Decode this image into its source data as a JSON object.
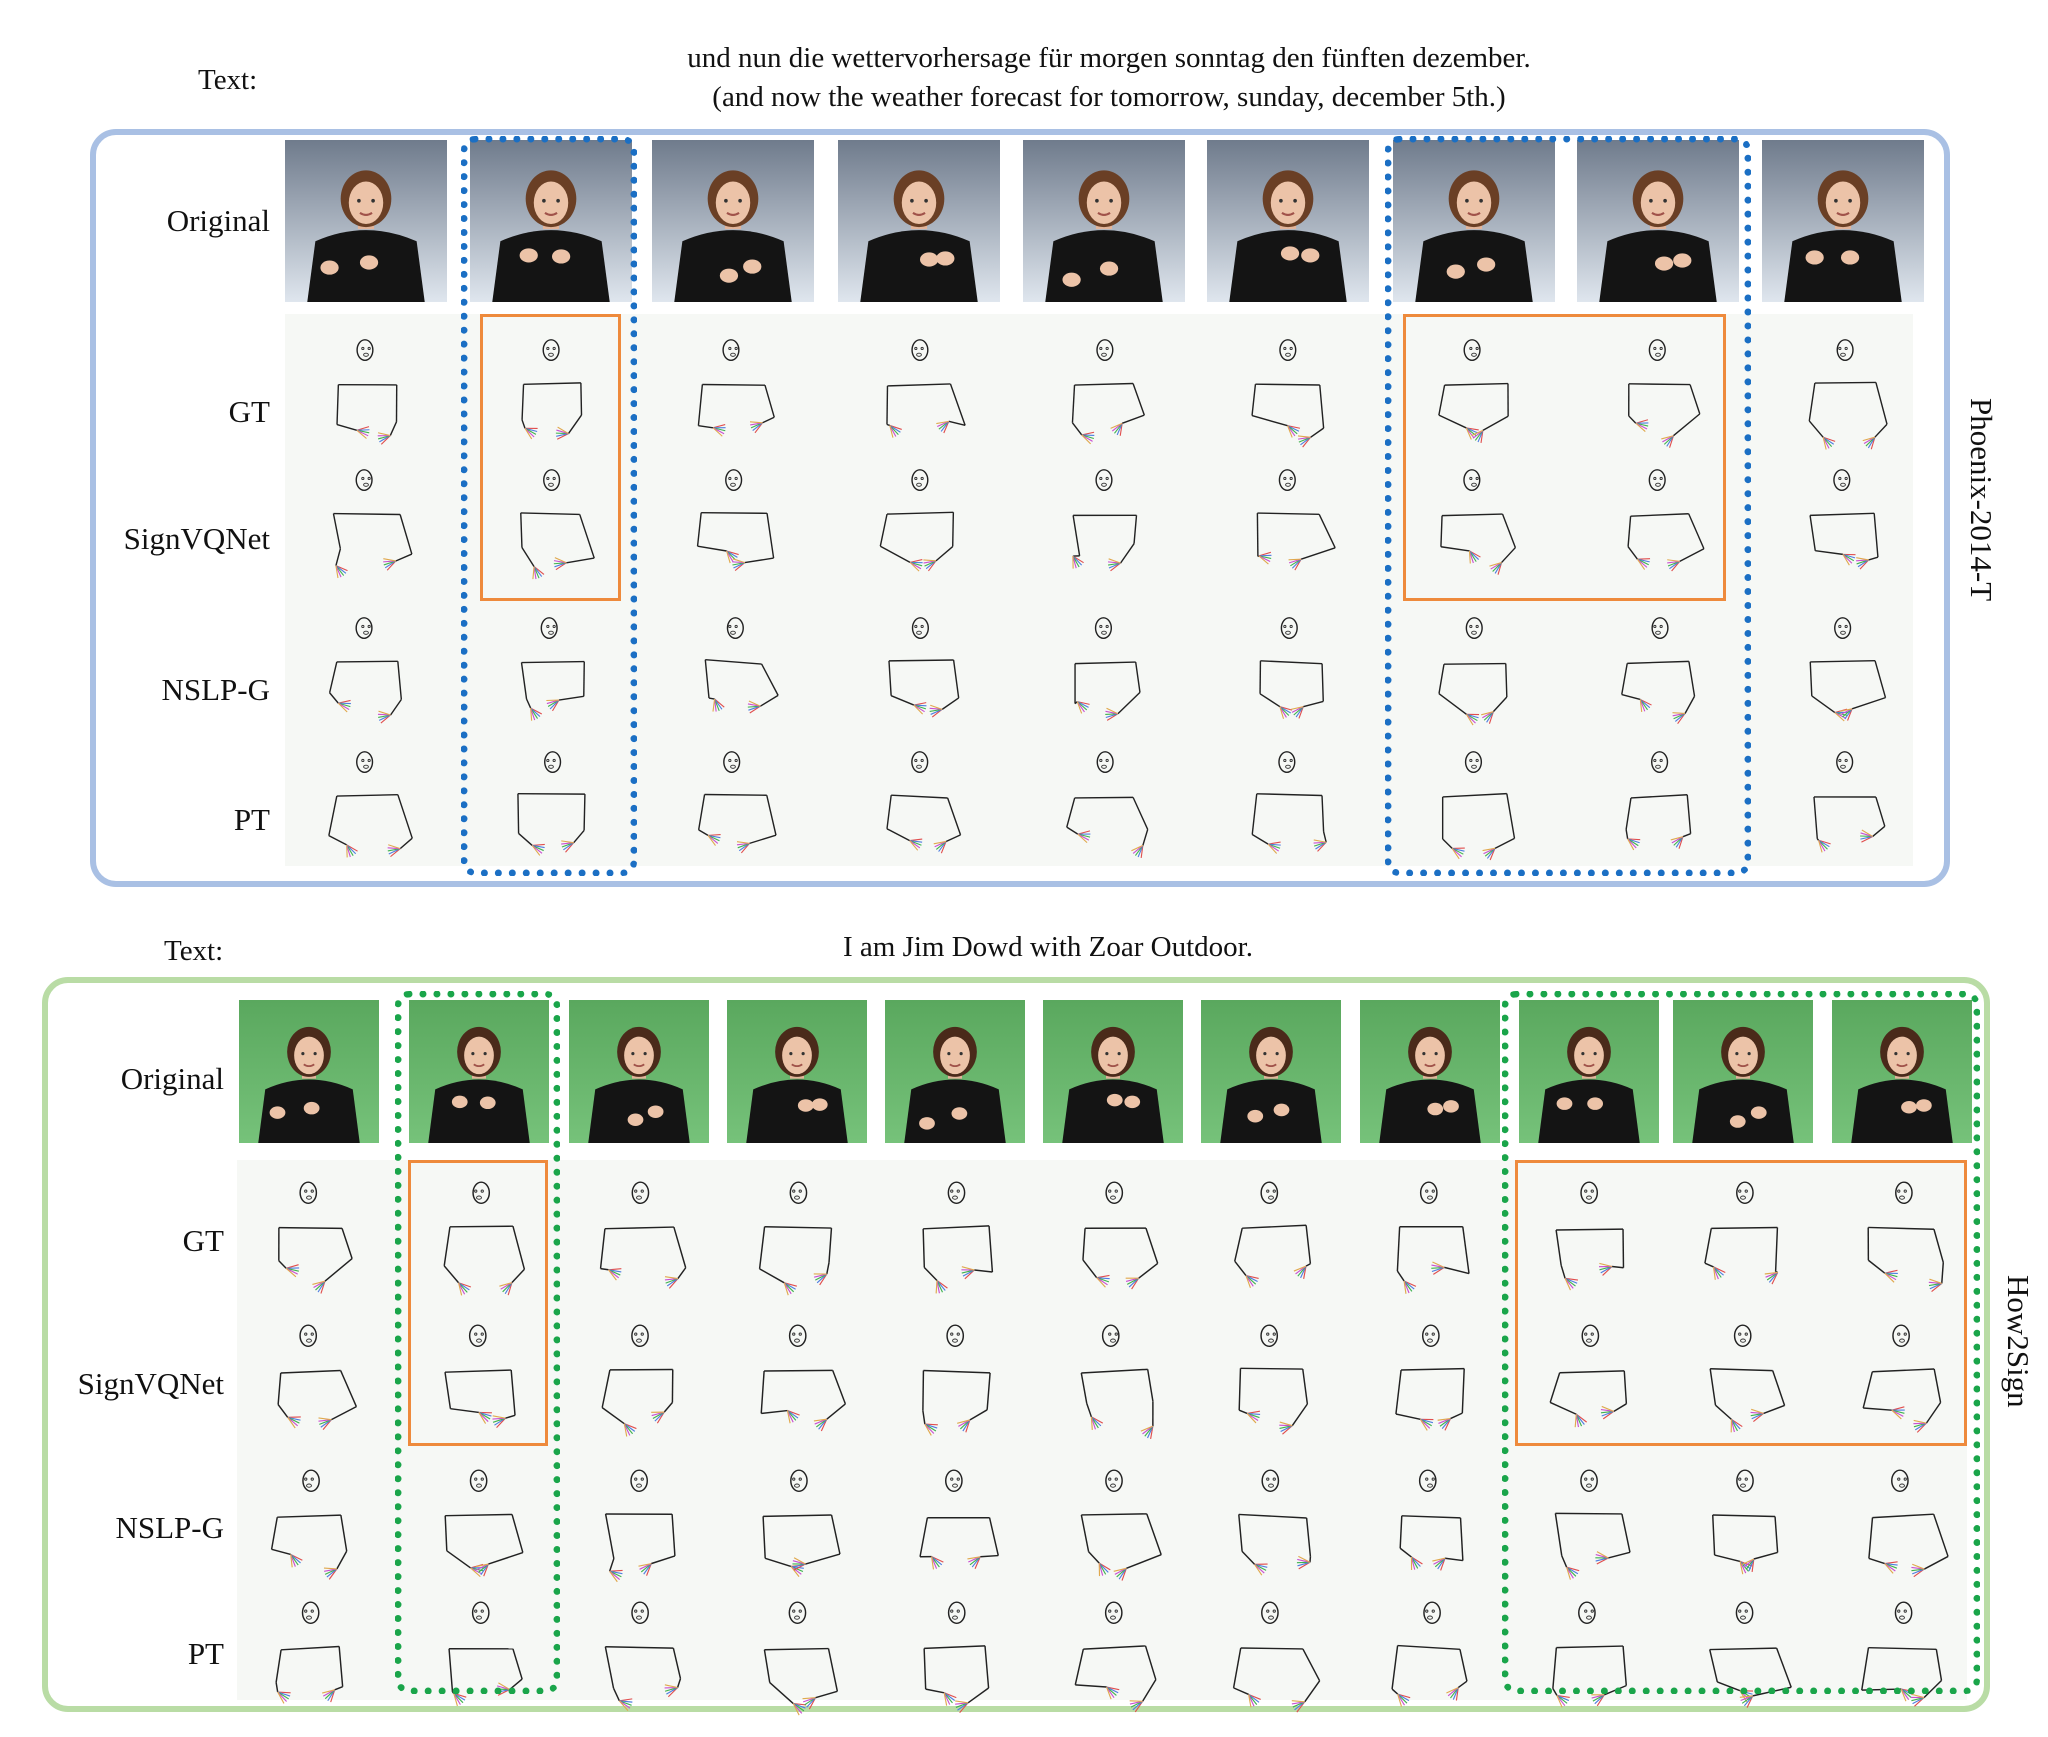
{
  "top": {
    "text_label": "Text:",
    "sentence_de": "und nun die wettervorhersage für morgen sonntag den fünften dezember.",
    "sentence_en": "(and now the weather forecast for tomorrow, sunday, december 5th.)",
    "dataset": "Phoenix-2014-T",
    "rows": [
      "Original",
      "GT",
      "SignVQNet",
      "NSLP-G",
      "PT"
    ],
    "frame_color": "#a9c0e4",
    "highlight_color": "#1b6fc4",
    "box_color": "#ee8a3c"
  },
  "bottom": {
    "text_label": "Text:",
    "sentence": "I am Jim Dowd with Zoar Outdoor.",
    "dataset": "How2Sign",
    "rows": [
      "Original",
      "GT",
      "SignVQNet",
      "NSLP-G",
      "PT"
    ],
    "frame_color": "#b9dca5",
    "highlight_color": "#1aa54a",
    "box_color": "#ee8a3c"
  }
}
